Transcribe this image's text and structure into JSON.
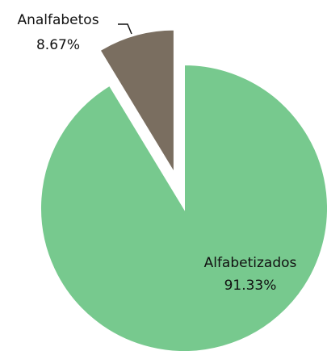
{
  "chart_data": {
    "type": "pie",
    "categories": [
      "Alfabetizados",
      "Analfabetos"
    ],
    "values": [
      91.33,
      8.67
    ],
    "value_labels": [
      "91.33%",
      "8.67%"
    ],
    "colors": [
      "#77c98e",
      "#7a6e60"
    ],
    "explode": [
      false,
      true
    ]
  }
}
